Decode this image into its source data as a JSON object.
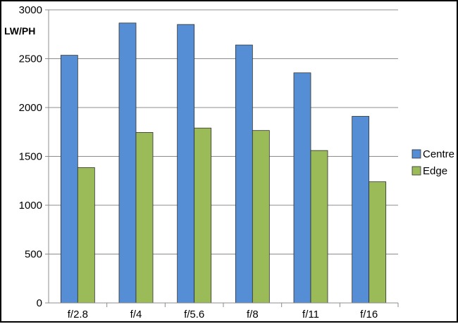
{
  "chart_data": {
    "type": "bar",
    "title": "",
    "xlabel": "",
    "ylabel": "LW/PH",
    "categories": [
      "f/2.8",
      "f/4",
      "f/5.6",
      "f/8",
      "f/11",
      "f/16"
    ],
    "series": [
      {
        "name": "Centre",
        "color": "#558ed5",
        "values": [
          2535,
          2865,
          2850,
          2640,
          2355,
          1910
        ]
      },
      {
        "name": "Edge",
        "color": "#9bbb59",
        "values": [
          1385,
          1745,
          1790,
          1765,
          1560,
          1240
        ]
      }
    ],
    "ylim": [
      0,
      3000
    ],
    "yticks": [
      0,
      500,
      1000,
      1500,
      2000,
      2500,
      3000
    ],
    "grid": true,
    "legend": "right"
  }
}
